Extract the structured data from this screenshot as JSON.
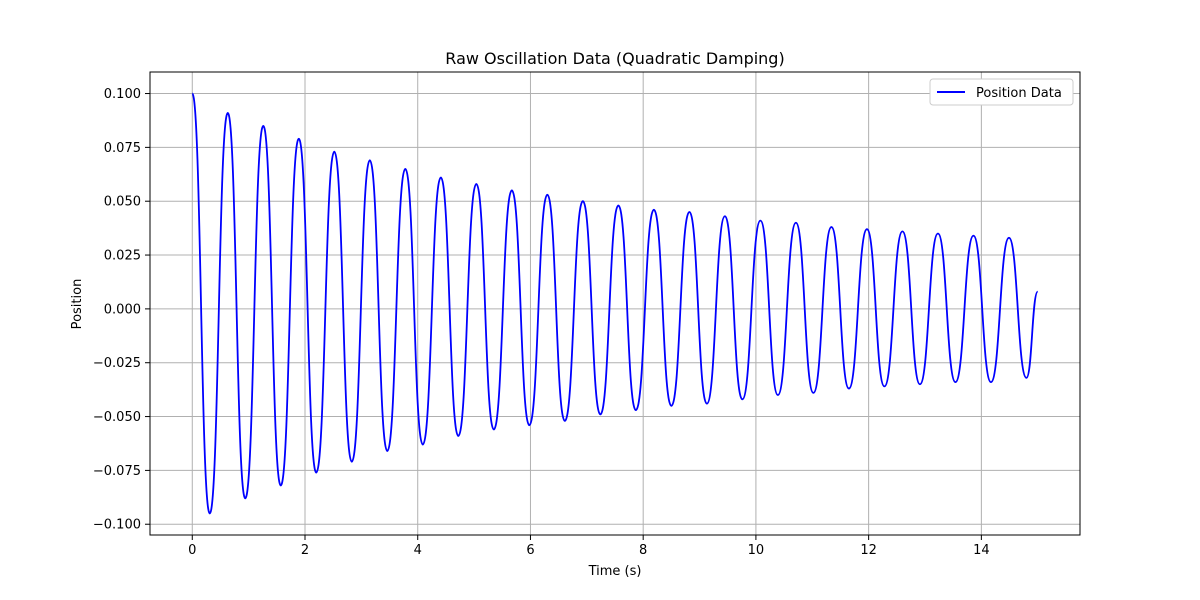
{
  "chart_data": {
    "type": "line",
    "title": "Raw Oscillation Data (Quadratic Damping)",
    "xlabel": "Time (s)",
    "ylabel": "Position",
    "xlim": [
      -0.75,
      15.75
    ],
    "ylim": [
      -0.105,
      0.11
    ],
    "x_ticks": [
      0,
      2,
      4,
      6,
      8,
      10,
      12,
      14
    ],
    "x_tick_labels": [
      "0",
      "2",
      "4",
      "6",
      "8",
      "10",
      "12",
      "14"
    ],
    "y_ticks": [
      -0.1,
      -0.075,
      -0.05,
      -0.025,
      0.0,
      0.025,
      0.05,
      0.075,
      0.1
    ],
    "y_tick_labels": [
      "−0.100",
      "−0.075",
      "−0.050",
      "−0.025",
      "0.000",
      "0.025",
      "0.050",
      "0.075",
      "0.100"
    ],
    "grid": true,
    "legend_position": "top-right",
    "series": [
      {
        "name": "Position Data",
        "color": "#0000ff",
        "x": [
          0.0,
          0.31,
          0.63,
          0.94,
          1.26,
          1.57,
          1.89,
          2.2,
          2.52,
          2.83,
          3.15,
          3.46,
          3.78,
          4.09,
          4.41,
          4.72,
          5.04,
          5.35,
          5.67,
          5.98,
          6.3,
          6.61,
          6.93,
          7.24,
          7.56,
          7.87,
          8.19,
          8.5,
          8.82,
          9.13,
          9.45,
          9.76,
          10.08,
          10.39,
          10.71,
          11.02,
          11.34,
          11.65,
          11.97,
          12.28,
          12.6,
          12.91,
          13.23,
          13.54,
          13.86,
          14.17,
          14.49,
          14.8,
          15.0
        ],
        "y": [
          0.1,
          -0.095,
          0.091,
          -0.088,
          0.085,
          -0.082,
          0.079,
          -0.076,
          0.073,
          -0.071,
          0.069,
          -0.066,
          0.065,
          -0.063,
          0.061,
          -0.059,
          0.058,
          -0.056,
          0.055,
          -0.054,
          0.053,
          -0.052,
          0.05,
          -0.049,
          0.048,
          -0.047,
          0.046,
          -0.045,
          0.045,
          -0.044,
          0.043,
          -0.042,
          0.041,
          -0.04,
          0.04,
          -0.039,
          0.038,
          -0.037,
          0.037,
          -0.036,
          0.036,
          -0.035,
          0.035,
          -0.034,
          0.034,
          -0.034,
          0.033,
          -0.032,
          0.008
        ]
      }
    ]
  }
}
